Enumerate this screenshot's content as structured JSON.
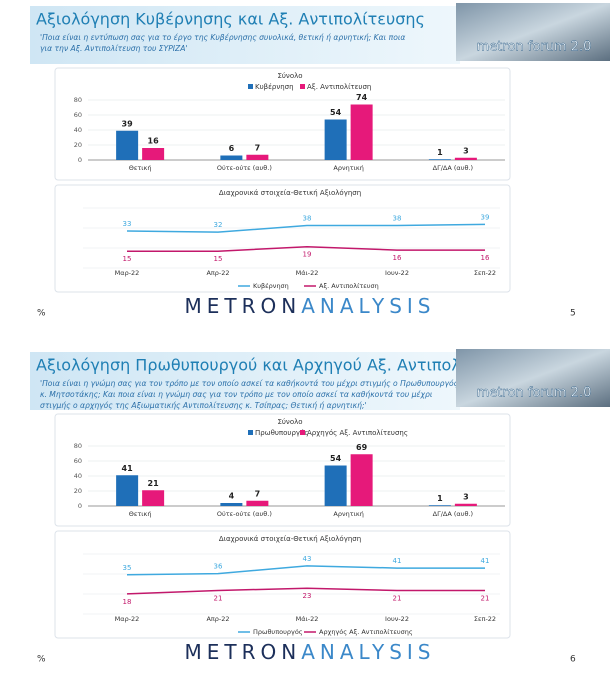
{
  "slides": [
    {
      "title": "Αξιολόγηση Κυβέρνησης και Αξ. Αντιπολίτευσης",
      "subtitle": [
        "'Ποια είναι η εντύπωση σας για το έργο της Κυβέρνησης συνολικά, θετική ή αρνητική; Και ποια",
        "για την Αξ. Αντιπολίτευση του ΣΥΡΙΖΑ'"
      ],
      "logo": "metron forum 2.0",
      "brand": [
        "METRON",
        "ANALYSIS"
      ],
      "unit": "%",
      "page": "5"
    },
    {
      "title": "Αξιολόγηση Πρωθυπουργού και Αρχηγού Αξ. Αντιπολίτευσης",
      "subtitle": [
        "'Ποια είναι η γνώμη σας για τον τρόπο με τον οποίο ασκεί τα καθήκοντά του μέχρι στιγμής ο Πρωθυπουργός",
        "κ. Μητσοτάκης; Και ποια είναι η γνώμη σας για τον τρόπο με τον οποίο ασκεί τα καθήκοντά του μέχρι",
        "στιγμής ο αρχηγός της Αξιωματικής Αντιπολίτευσης κ. Τσίπρας; Θετική ή αρνητική;'"
      ],
      "logo": "metron forum 2.0",
      "brand": [
        "METRON",
        "ANALYSIS"
      ],
      "unit": "%",
      "page": "6"
    }
  ],
  "chart_data": [
    {
      "type": "bar",
      "title": "Σύνολο",
      "categories": [
        "Θετική",
        "Ούτε-ούτε (αυθ.)",
        "Αρνητική",
        "ΔΓ/ΔΑ (αυθ.)"
      ],
      "series": [
        {
          "name": "Κυβέρνηση",
          "color": "#1f6fb8",
          "values": [
            39,
            6,
            54,
            1
          ]
        },
        {
          "name": "Αξ. Αντιπολίτευση",
          "color": "#e6197a",
          "values": [
            16,
            7,
            74,
            3
          ]
        }
      ],
      "ylim": [
        0,
        80
      ],
      "yticks": [
        0,
        20,
        40,
        60,
        80
      ],
      "grid": true,
      "legend": "top"
    },
    {
      "type": "line",
      "title": "Διαχρονικά στοιχεία-Θετική Αξιολόγηση",
      "categories": [
        "Μαρ-22",
        "Απρ-22",
        "Μάι-22",
        "Ιουν-22",
        "Σεπ-22"
      ],
      "series": [
        {
          "name": "Κυβέρνηση",
          "color": "#3fa9df",
          "values": [
            33,
            32,
            38,
            38,
            39
          ]
        },
        {
          "name": "Αξ. Αντιπολίτευση",
          "color": "#c2186b",
          "values": [
            15,
            15,
            19,
            16,
            16
          ]
        }
      ],
      "ylim": [
        0,
        50
      ],
      "legend": "bottom"
    },
    {
      "type": "bar",
      "title": "Σύνολο",
      "categories": [
        "Θετική",
        "Ούτε-ούτε (αυθ.)",
        "Αρνητική",
        "ΔΓ/ΔΑ (αυθ.)"
      ],
      "series": [
        {
          "name": "Πρωθυπουργός",
          "color": "#1f6fb8",
          "values": [
            41,
            4,
            54,
            1
          ]
        },
        {
          "name": "Αρχηγός Αξ. Αντιπολίτευσης",
          "color": "#e6197a",
          "values": [
            21,
            7,
            69,
            3
          ]
        }
      ],
      "ylim": [
        0,
        80
      ],
      "yticks": [
        0,
        20,
        40,
        60,
        80
      ],
      "grid": true,
      "legend": "top"
    },
    {
      "type": "line",
      "title": "Διαχρονικά στοιχεία-Θετική Αξιολόγηση",
      "categories": [
        "Μαρ-22",
        "Απρ-22",
        "Μάι-22",
        "Ιουν-22",
        "Σεπ-22"
      ],
      "series": [
        {
          "name": "Πρωθυπουργός",
          "color": "#3fa9df",
          "values": [
            35,
            36,
            43,
            41,
            41
          ]
        },
        {
          "name": "Αρχηγός Αξ. Αντιπολίτευσης",
          "color": "#c2186b",
          "values": [
            18,
            21,
            23,
            21,
            21
          ]
        }
      ],
      "ylim": [
        0,
        50
      ],
      "legend": "bottom"
    }
  ]
}
